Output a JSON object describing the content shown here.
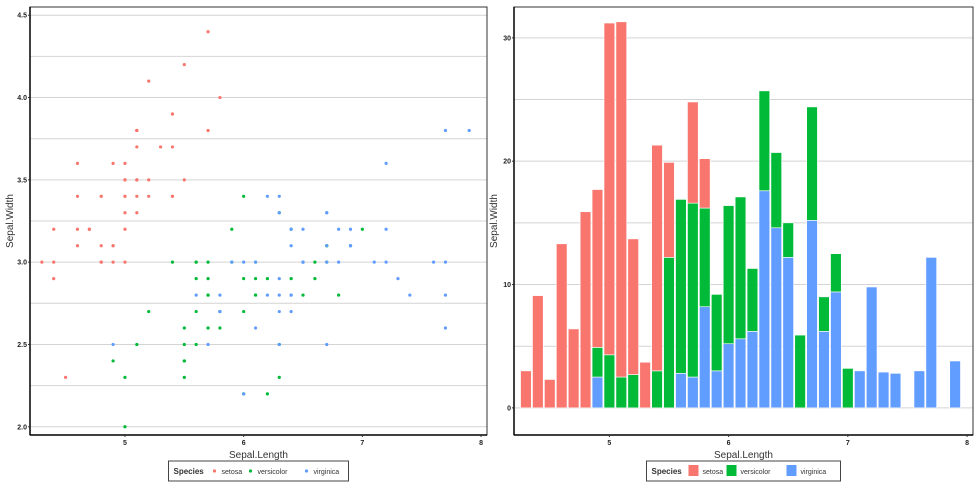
{
  "colors": {
    "setosa": "#F8766D",
    "versicolor": "#00BA38",
    "virginica": "#619CFF"
  },
  "chart_data": [
    {
      "type": "scatter",
      "xlabel": "Sepal.Length",
      "ylabel": "Sepal.Width",
      "xlim": [
        4.2,
        8.05
      ],
      "ylim": [
        1.95,
        4.55
      ],
      "xticks": [
        "5",
        "6",
        "7",
        "8"
      ],
      "yticks": [
        "2.0",
        "2.5",
        "3.0",
        "3.5",
        "4.0",
        "4.5"
      ],
      "grid": "horizontal",
      "legend": {
        "title": "Species",
        "position": "bottom",
        "entries": [
          "setosa",
          "versicolor",
          "virginica"
        ]
      },
      "series": [
        {
          "name": "setosa",
          "points": [
            [
              5.1,
              3.5
            ],
            [
              4.9,
              3.0
            ],
            [
              4.7,
              3.2
            ],
            [
              4.6,
              3.1
            ],
            [
              5.0,
              3.6
            ],
            [
              5.4,
              3.9
            ],
            [
              4.6,
              3.4
            ],
            [
              5.0,
              3.4
            ],
            [
              4.4,
              2.9
            ],
            [
              4.9,
              3.1
            ],
            [
              5.4,
              3.7
            ],
            [
              4.8,
              3.4
            ],
            [
              4.8,
              3.0
            ],
            [
              4.3,
              3.0
            ],
            [
              5.8,
              4.0
            ],
            [
              5.7,
              4.4
            ],
            [
              5.4,
              3.9
            ],
            [
              5.1,
              3.5
            ],
            [
              5.7,
              3.8
            ],
            [
              5.1,
              3.8
            ],
            [
              5.4,
              3.4
            ],
            [
              5.1,
              3.7
            ],
            [
              4.6,
              3.6
            ],
            [
              5.1,
              3.3
            ],
            [
              4.8,
              3.4
            ],
            [
              5.0,
              3.0
            ],
            [
              5.0,
              3.4
            ],
            [
              5.2,
              3.5
            ],
            [
              5.2,
              3.4
            ],
            [
              4.7,
              3.2
            ],
            [
              4.8,
              3.1
            ],
            [
              5.4,
              3.4
            ],
            [
              5.2,
              4.1
            ],
            [
              5.5,
              4.2
            ],
            [
              4.9,
              3.1
            ],
            [
              5.0,
              3.2
            ],
            [
              5.5,
              3.5
            ],
            [
              4.9,
              3.6
            ],
            [
              4.4,
              3.0
            ],
            [
              5.1,
              3.4
            ],
            [
              5.0,
              3.5
            ],
            [
              4.5,
              2.3
            ],
            [
              4.4,
              3.2
            ],
            [
              5.0,
              3.5
            ],
            [
              5.1,
              3.8
            ],
            [
              4.8,
              3.0
            ],
            [
              5.1,
              3.8
            ],
            [
              4.6,
              3.2
            ],
            [
              5.3,
              3.7
            ],
            [
              5.0,
              3.3
            ]
          ]
        },
        {
          "name": "versicolor",
          "points": [
            [
              7.0,
              3.2
            ],
            [
              6.4,
              3.2
            ],
            [
              6.9,
              3.1
            ],
            [
              5.5,
              2.3
            ],
            [
              6.5,
              2.8
            ],
            [
              5.7,
              2.8
            ],
            [
              6.3,
              3.3
            ],
            [
              4.9,
              2.4
            ],
            [
              6.6,
              2.9
            ],
            [
              5.2,
              2.7
            ],
            [
              5.0,
              2.0
            ],
            [
              5.9,
              3.0
            ],
            [
              6.0,
              2.2
            ],
            [
              6.1,
              2.9
            ],
            [
              5.6,
              2.9
            ],
            [
              6.7,
              3.1
            ],
            [
              5.6,
              3.0
            ],
            [
              5.8,
              2.7
            ],
            [
              6.2,
              2.2
            ],
            [
              5.6,
              2.5
            ],
            [
              5.9,
              3.2
            ],
            [
              6.1,
              2.8
            ],
            [
              6.3,
              2.5
            ],
            [
              6.1,
              2.8
            ],
            [
              6.4,
              2.9
            ],
            [
              6.6,
              3.0
            ],
            [
              6.8,
              2.8
            ],
            [
              6.7,
              3.0
            ],
            [
              6.0,
              2.9
            ],
            [
              5.7,
              2.6
            ],
            [
              5.5,
              2.4
            ],
            [
              5.5,
              2.4
            ],
            [
              5.8,
              2.7
            ],
            [
              6.0,
              2.7
            ],
            [
              5.4,
              3.0
            ],
            [
              6.0,
              3.4
            ],
            [
              6.7,
              3.1
            ],
            [
              6.3,
              2.3
            ],
            [
              5.6,
              3.0
            ],
            [
              5.5,
              2.5
            ],
            [
              5.5,
              2.6
            ],
            [
              6.1,
              3.0
            ],
            [
              5.8,
              2.6
            ],
            [
              5.0,
              2.3
            ],
            [
              5.6,
              2.7
            ],
            [
              5.7,
              3.0
            ],
            [
              5.7,
              2.9
            ],
            [
              6.2,
              2.9
            ],
            [
              5.1,
              2.5
            ],
            [
              5.7,
              2.8
            ]
          ]
        },
        {
          "name": "virginica",
          "points": [
            [
              6.3,
              3.3
            ],
            [
              5.8,
              2.7
            ],
            [
              7.1,
              3.0
            ],
            [
              6.3,
              2.9
            ],
            [
              6.5,
              3.0
            ],
            [
              7.6,
              3.0
            ],
            [
              4.9,
              2.5
            ],
            [
              7.3,
              2.9
            ],
            [
              6.7,
              2.5
            ],
            [
              7.2,
              3.6
            ],
            [
              6.5,
              3.2
            ],
            [
              6.4,
              2.7
            ],
            [
              6.8,
              3.0
            ],
            [
              5.7,
              2.5
            ],
            [
              5.8,
              2.8
            ],
            [
              6.4,
              3.2
            ],
            [
              6.5,
              3.0
            ],
            [
              7.7,
              3.8
            ],
            [
              7.7,
              2.6
            ],
            [
              6.0,
              2.2
            ],
            [
              6.9,
              3.2
            ],
            [
              5.6,
              2.8
            ],
            [
              7.7,
              2.8
            ],
            [
              6.3,
              2.7
            ],
            [
              6.7,
              3.3
            ],
            [
              7.2,
              3.2
            ],
            [
              6.2,
              2.8
            ],
            [
              6.1,
              3.0
            ],
            [
              6.4,
              2.8
            ],
            [
              7.2,
              3.0
            ],
            [
              7.4,
              2.8
            ],
            [
              7.9,
              3.8
            ],
            [
              6.4,
              2.8
            ],
            [
              6.3,
              2.8
            ],
            [
              6.1,
              2.6
            ],
            [
              7.7,
              3.0
            ],
            [
              6.3,
              3.4
            ],
            [
              6.4,
              3.1
            ],
            [
              6.0,
              3.0
            ],
            [
              6.9,
              3.1
            ],
            [
              6.7,
              3.1
            ],
            [
              6.9,
              3.1
            ],
            [
              5.8,
              2.7
            ],
            [
              6.8,
              3.2
            ],
            [
              6.7,
              3.3
            ],
            [
              6.7,
              3.0
            ],
            [
              6.3,
              2.5
            ],
            [
              6.5,
              3.0
            ],
            [
              6.2,
              3.4
            ],
            [
              5.9,
              3.0
            ]
          ]
        }
      ]
    },
    {
      "type": "bar",
      "stacked": true,
      "xlabel": "Sepal.Length",
      "ylabel": "Sepal.Width",
      "xlim": [
        4.2,
        8.05
      ],
      "ylim": [
        -2.2,
        32.5
      ],
      "xticks": [
        "5",
        "6",
        "7",
        "8"
      ],
      "yticks": [
        "0",
        "10",
        "20",
        "30"
      ],
      "grid": "horizontal",
      "legend": {
        "title": "Species",
        "position": "bottom",
        "entries": [
          "setosa",
          "versicolor",
          "virginica"
        ]
      },
      "series": [
        {
          "name": "setosa",
          "values": [
            [
              4.3,
              3.0
            ],
            [
              4.4,
              9.1
            ],
            [
              4.5,
              2.3
            ],
            [
              4.6,
              13.3
            ],
            [
              4.7,
              6.4
            ],
            [
              4.8,
              15.9
            ],
            [
              4.9,
              12.8
            ],
            [
              5.0,
              26.9
            ],
            [
              5.1,
              28.8
            ],
            [
              5.2,
              11.0
            ],
            [
              5.3,
              3.7
            ],
            [
              5.4,
              18.3
            ],
            [
              5.5,
              7.7
            ],
            [
              5.7,
              8.2
            ],
            [
              5.8,
              4.0
            ]
          ]
        },
        {
          "name": "versicolor",
          "values": [
            [
              4.9,
              2.4
            ],
            [
              5.0,
              4.3
            ],
            [
              5.1,
              2.5
            ],
            [
              5.2,
              2.7
            ],
            [
              5.4,
              3.0
            ],
            [
              5.5,
              12.2
            ],
            [
              5.6,
              14.1
            ],
            [
              5.7,
              14.1
            ],
            [
              5.8,
              8.0
            ],
            [
              5.9,
              6.2
            ],
            [
              6.0,
              11.2
            ],
            [
              6.1,
              11.5
            ],
            [
              6.2,
              5.1
            ],
            [
              6.3,
              8.1
            ],
            [
              6.4,
              6.1
            ],
            [
              6.5,
              2.8
            ],
            [
              6.6,
              5.9
            ],
            [
              6.7,
              9.2
            ],
            [
              6.8,
              2.8
            ],
            [
              6.9,
              3.1
            ],
            [
              7.0,
              3.2
            ]
          ]
        },
        {
          "name": "virginica",
          "values": [
            [
              4.9,
              2.5
            ],
            [
              5.6,
              2.8
            ],
            [
              5.7,
              2.5
            ],
            [
              5.8,
              8.2
            ],
            [
              5.9,
              3.0
            ],
            [
              6.0,
              5.2
            ],
            [
              6.1,
              5.6
            ],
            [
              6.2,
              6.2
            ],
            [
              6.3,
              17.6
            ],
            [
              6.4,
              14.6
            ],
            [
              6.5,
              12.2
            ],
            [
              6.7,
              15.2
            ],
            [
              6.8,
              6.2
            ],
            [
              6.9,
              9.4
            ],
            [
              7.1,
              3.0
            ],
            [
              7.2,
              9.8
            ],
            [
              7.3,
              2.9
            ],
            [
              7.4,
              2.8
            ],
            [
              7.6,
              3.0
            ],
            [
              7.7,
              12.2
            ],
            [
              7.9,
              3.8
            ]
          ]
        }
      ]
    }
  ]
}
